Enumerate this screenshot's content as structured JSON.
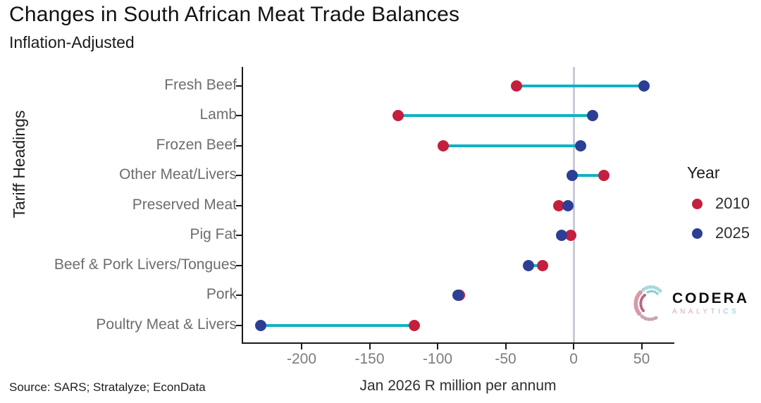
{
  "title": "Changes in South African Meat Trade Balances",
  "subtitle": "Inflation-Adjusted",
  "source_note": "Source: SARS; Stratalyze; EconData",
  "legend": {
    "title": "Year",
    "items": [
      {
        "label": "2010",
        "color": "#C41F3D"
      },
      {
        "label": "2025",
        "color": "#2C3F94"
      }
    ]
  },
  "logo": {
    "name": "CODERA",
    "sub": "ANALYTICS"
  },
  "colors": {
    "series_2010": "#C41F3D",
    "series_2025": "#2C3F94",
    "connector": "#0FB2C3",
    "zero_line": "#C9CAD6",
    "axis": "#1A1A1A",
    "category_text": "#6d6d6d",
    "tick_text": "#7c7c7c"
  },
  "chart_data": {
    "type": "scatter",
    "variant": "dumbbell",
    "title": "Changes in South African Meat Trade Balances",
    "subtitle": "Inflation-Adjusted",
    "xlabel": "Jan 2026 R million per annum",
    "ylabel": "Tariff Headings",
    "categories": [
      "Fresh Beef",
      "Lamb",
      "Frozen Beef",
      "Other Meat/Livers",
      "Preserved Meat",
      "Pig Fat",
      "Beef & Pork Livers/Tongues",
      "Pork",
      "Poultry Meat & Livers"
    ],
    "series": [
      {
        "name": "2010",
        "color": "#C41F3D",
        "values": [
          -42,
          -129,
          -96,
          22,
          -11,
          -2,
          -23,
          -84,
          -117
        ]
      },
      {
        "name": "2025",
        "color": "#2C3F94",
        "values": [
          52,
          14,
          5,
          -1,
          -4,
          -9,
          -33,
          -85,
          -230
        ]
      }
    ],
    "connector_color": "#0FB2C3",
    "zero_line": true,
    "grid": false,
    "legend_position": "right",
    "xlim": [
      -243,
      73
    ],
    "xticks": [
      -200,
      -150,
      -100,
      -50,
      0,
      50
    ]
  }
}
